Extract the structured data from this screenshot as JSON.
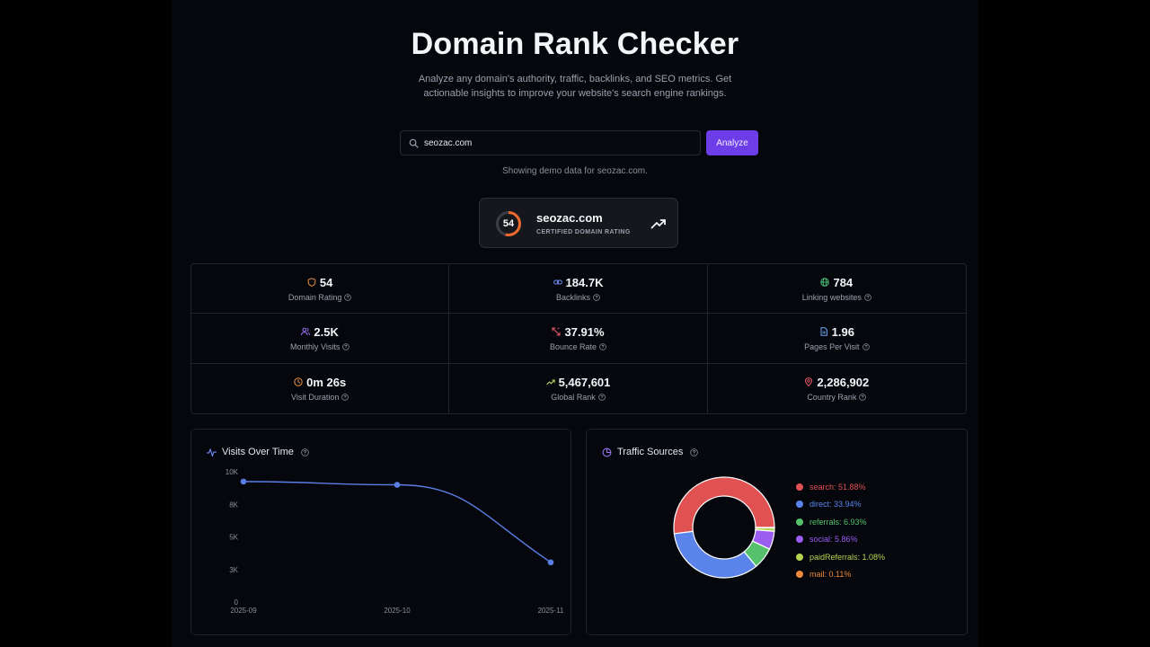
{
  "header": {
    "title": "Domain Rank Checker",
    "subtitle": "Analyze any domain's authority, traffic, backlinks, and SEO metrics. Get actionable insights to improve your website's search engine rankings."
  },
  "search": {
    "value": "seozac.com",
    "button_label": "Analyze",
    "note": "Showing demo data for seozac.com."
  },
  "rating_card": {
    "score": "54",
    "domain": "seozac.com",
    "subtitle": "CERTIFIED DOMAIN RATING",
    "score_fraction": 0.54
  },
  "stats": [
    {
      "icon": "shield-icon",
      "color": "#e8923c",
      "value": "54",
      "label": "Domain Rating"
    },
    {
      "icon": "link-icon",
      "color": "#6f8df2",
      "value": "184.7K",
      "label": "Backlinks"
    },
    {
      "icon": "globe-icon",
      "color": "#4cc27a",
      "value": "784",
      "label": "Linking websites"
    },
    {
      "icon": "users-icon",
      "color": "#9b72f2",
      "value": "2.5K",
      "label": "Monthly Visits"
    },
    {
      "icon": "bounce-icon",
      "color": "#ea5a6e",
      "value": "37.91%",
      "label": "Bounce Rate"
    },
    {
      "icon": "document-icon",
      "color": "#6fa8f2",
      "value": "1.96",
      "label": "Pages Per Visit"
    },
    {
      "icon": "clock-icon",
      "color": "#e8923c",
      "value": "0m 26s",
      "label": "Visit Duration"
    },
    {
      "icon": "trending-up-icon",
      "color": "#b6d35a",
      "value": "5,467,601",
      "label": "Global Rank"
    },
    {
      "icon": "map-pin-icon",
      "color": "#ea5a6e",
      "value": "2,286,902",
      "label": "Country Rank"
    }
  ],
  "visits_panel": {
    "title": "Visits Over Time",
    "chart_data": {
      "type": "line",
      "x": [
        "2025-09",
        "2025-10",
        "2025-11"
      ],
      "values": [
        9250,
        9000,
        3050
      ],
      "ylim": [
        0,
        10000
      ],
      "yticks": [
        0,
        2500,
        5000,
        7500,
        10000
      ],
      "ytick_labels": [
        "0",
        "3K",
        "5K",
        "8K",
        "10K"
      ],
      "color": "#5b7ee5",
      "grid": false
    }
  },
  "traffic_panel": {
    "title": "Traffic Sources",
    "chart_data": {
      "type": "pie",
      "donut": true,
      "labels": [
        "search",
        "direct",
        "referrals",
        "social",
        "paidReferrals",
        "mail"
      ],
      "values": [
        51.88,
        33.94,
        6.93,
        5.86,
        1.08,
        0.11
      ],
      "colors": [
        "#e05252",
        "#5b84ea",
        "#55c26b",
        "#9b5cf0",
        "#b4d452",
        "#ec8a3a"
      ],
      "legend_labels": [
        "search: 51.88%",
        "direct: 33.94%",
        "referrals: 6.93%",
        "social: 5.86%",
        "paidReferrals: 1.08%",
        "mail: 0.11%"
      ],
      "legend": "right"
    }
  }
}
